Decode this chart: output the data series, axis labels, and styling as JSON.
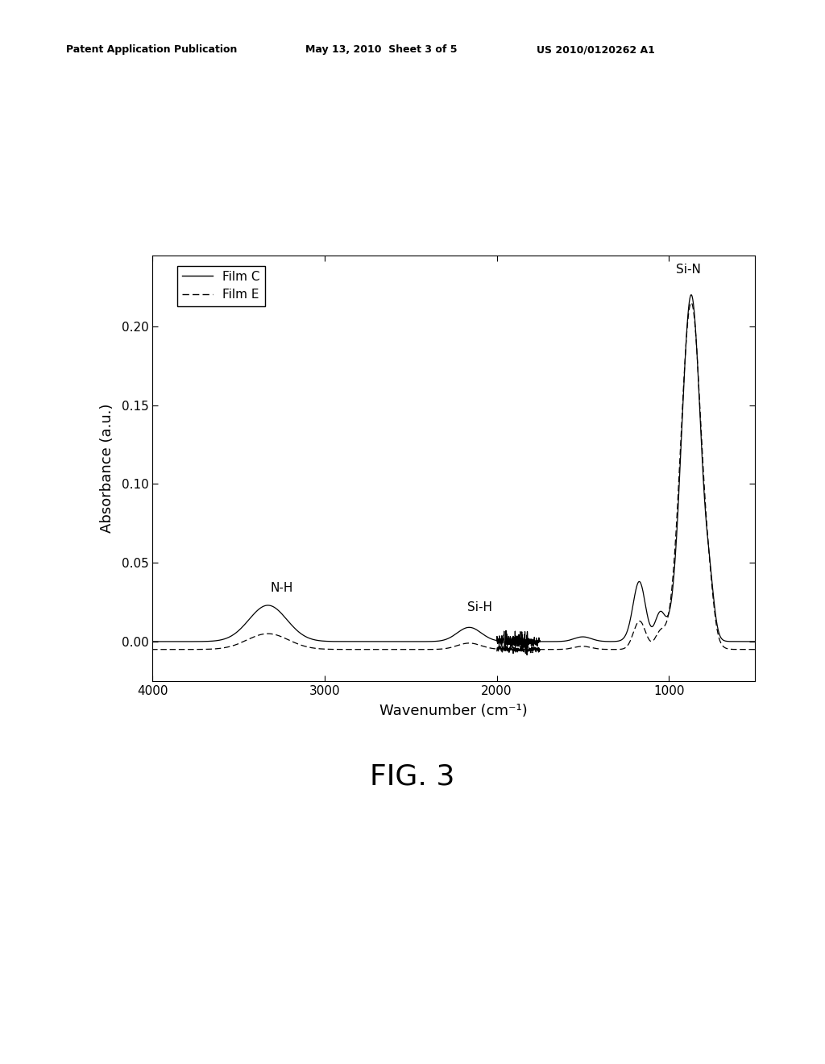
{
  "header_left": "Patent Application Publication",
  "header_center": "May 13, 2010  Sheet 3 of 5",
  "header_right": "US 2010/0120262 A1",
  "fig_label": "FIG. 3",
  "xlabel": "Wavenumber (cm⁻¹)",
  "ylabel": "Absorbance (a.u.)",
  "xlim": [
    4000,
    500
  ],
  "ylim": [
    -0.025,
    0.245
  ],
  "yticks": [
    0.0,
    0.05,
    0.1,
    0.15,
    0.2
  ],
  "xticks": [
    4000,
    3000,
    2000,
    1000
  ],
  "legend_labels": [
    "Film C",
    "Film E"
  ],
  "nh_annotation": "N-H",
  "sih_annotation": "Si-H",
  "sin_annotation": "Si-N",
  "background_color": "#ffffff",
  "line_color": "#000000",
  "header_fontsize": 9,
  "axis_label_fontsize": 13,
  "tick_fontsize": 11,
  "legend_fontsize": 11,
  "annotation_fontsize": 11,
  "fig_label_fontsize": 26
}
